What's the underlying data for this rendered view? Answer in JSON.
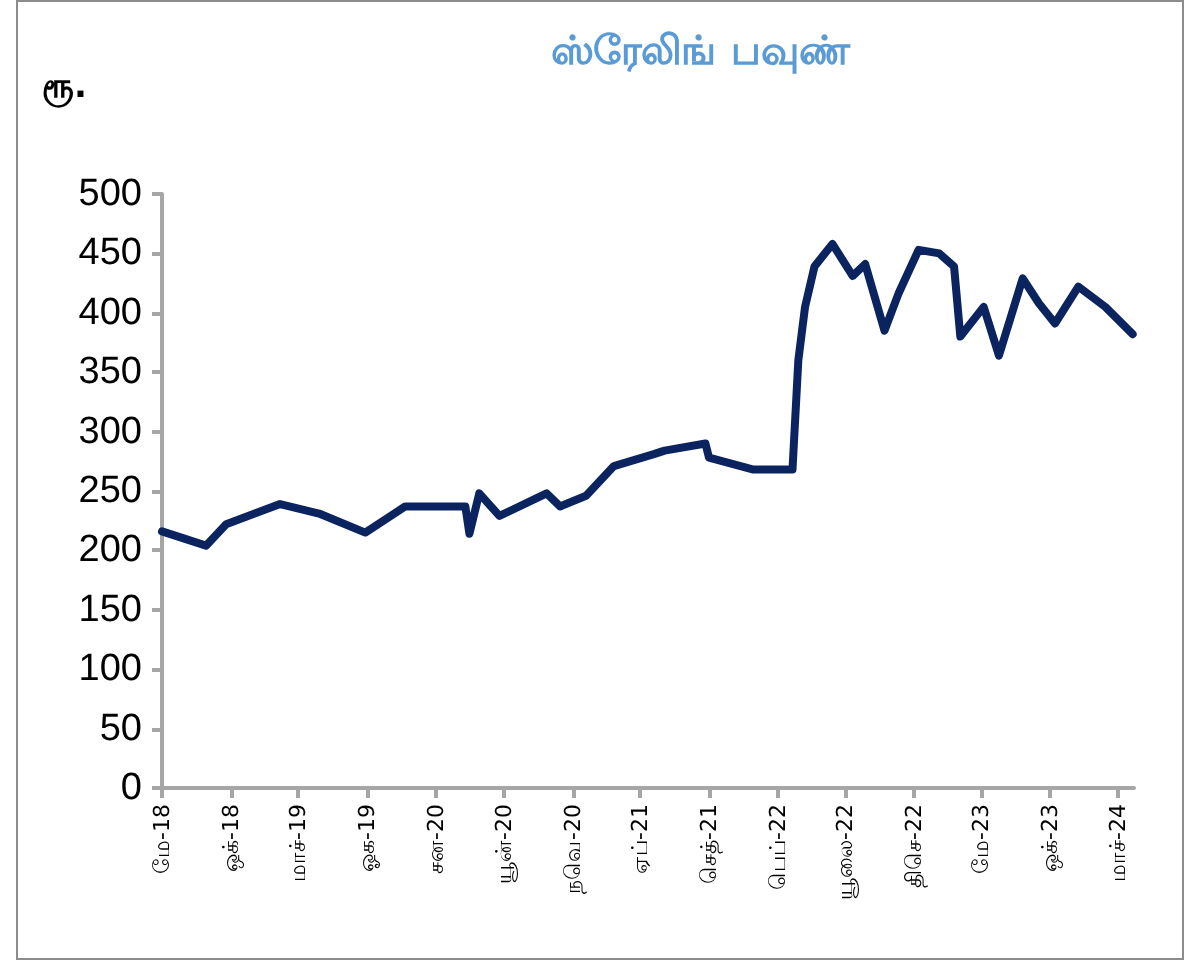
{
  "chart_data": {
    "type": "line",
    "title": "ஸ்ரேலிங் பவுண்",
    "ylabel": "ரூ.",
    "x": [
      "2018-05-01",
      "2018-08-07",
      "2018-09-21",
      "2019-01-19",
      "2019-04-16",
      "2019-07-28",
      "2019-10-25",
      "2020-03-07",
      "2020-03-16",
      "2020-04-07",
      "2020-05-22",
      "2020-09-04",
      "2020-10-04",
      "2020-12-01",
      "2021-02-01",
      "2021-05-01",
      "2021-05-25",
      "2021-08-24",
      "2021-09-01",
      "2021-12-09",
      "2022-03-06",
      "2022-03-19",
      "2022-04-03",
      "2022-04-24",
      "2022-06-03",
      "2022-07-18",
      "2022-08-15",
      "2022-09-27",
      "2022-10-28",
      "2022-12-12",
      "2023-01-27",
      "2023-03-01",
      "2023-03-15",
      "2023-05-06",
      "2023-06-09",
      "2023-08-01",
      "2023-09-06",
      "2023-10-12",
      "2023-12-03",
      "2024-02-01",
      "2024-04-02"
    ],
    "series": [
      {
        "color": "#0b2460",
        "values": [
          216,
          204,
          222,
          239,
          231,
          215,
          237,
          237,
          214,
          248,
          229,
          248,
          237,
          246,
          271,
          281,
          284,
          290,
          278,
          268,
          268,
          360,
          405,
          439,
          458,
          431,
          441,
          385,
          416,
          453,
          450,
          439,
          380,
          405,
          364,
          429,
          408,
          391,
          422,
          405,
          382
        ]
      }
    ],
    "xlim": [
      "2018-05-01",
      "2024-04-05"
    ],
    "xticks": [
      {
        "value": "2018-05-01",
        "label": "மே-18"
      },
      {
        "value": "2018-10-01",
        "label": "ஒக்-18"
      },
      {
        "value": "2019-03-01",
        "label": "மாச்-19"
      },
      {
        "value": "2019-08-01",
        "label": "ஓக-19"
      },
      {
        "value": "2020-01-01",
        "label": "சன-20"
      },
      {
        "value": "2020-06-01",
        "label": "யூன்-20"
      },
      {
        "value": "2020-11-01",
        "label": "நவெ-20"
      },
      {
        "value": "2021-04-01",
        "label": "ஏப்-21"
      },
      {
        "value": "2021-09-01",
        "label": "செத்-21"
      },
      {
        "value": "2022-02-01",
        "label": "பெப்-22"
      },
      {
        "value": "2022-07-01",
        "label": "யூலை-22"
      },
      {
        "value": "2022-12-01",
        "label": "திசெ-22"
      },
      {
        "value": "2023-05-01",
        "label": "மே-23"
      },
      {
        "value": "2023-10-01",
        "label": "ஒக்-23"
      },
      {
        "value": "2024-03-01",
        "label": "மாச்-24"
      }
    ],
    "ylim": [
      0,
      500
    ],
    "yticks": [
      0,
      50,
      100,
      150,
      200,
      250,
      300,
      350,
      400,
      450,
      500
    ],
    "grid": false,
    "marker": "none",
    "line_style": "solid"
  }
}
